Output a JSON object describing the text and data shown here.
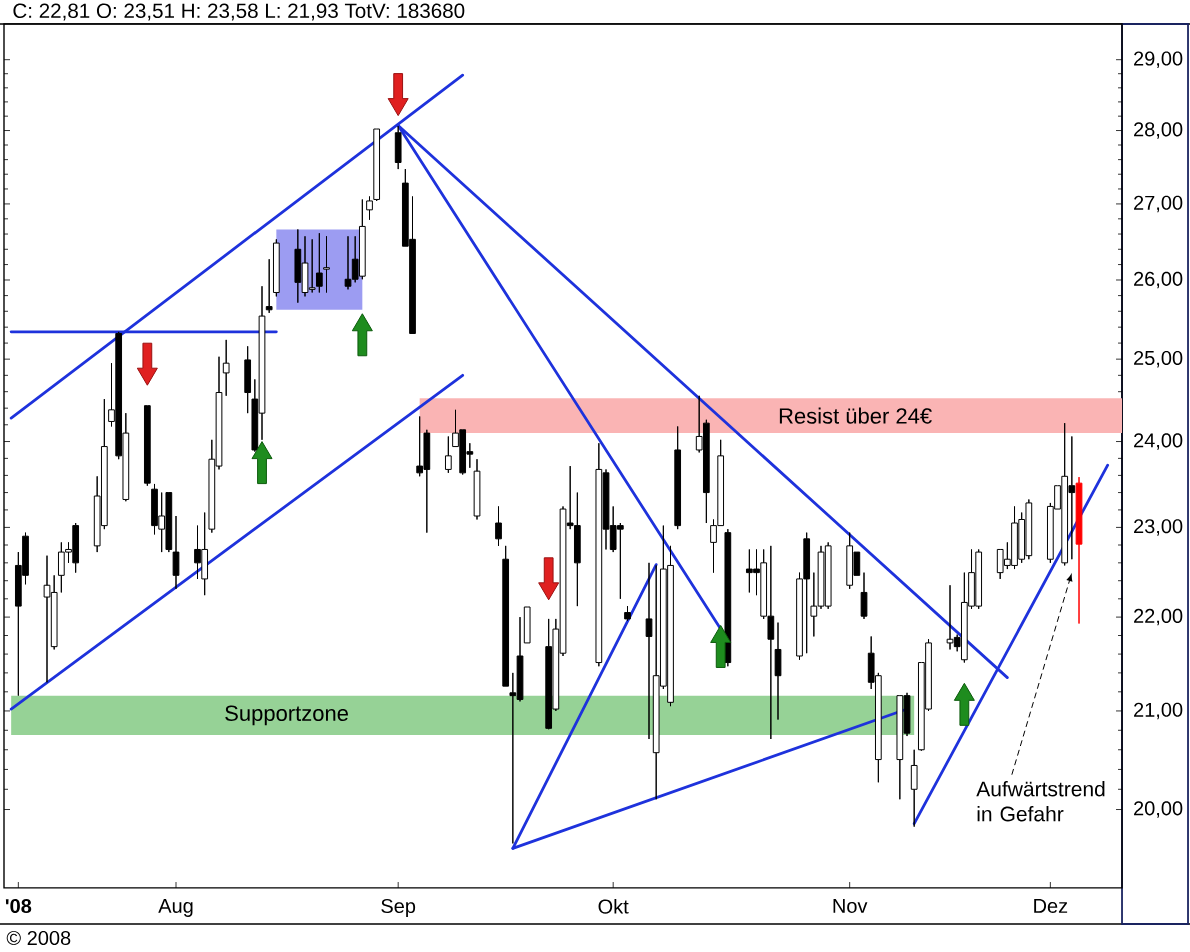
{
  "chart_data": {
    "type": "candlestick",
    "title": "C: 22,81 O: 23,51 H: 23,58 L: 21,93 TotV: 183680",
    "log": true,
    "xlim": [
      "2008-07-08",
      "2008-12-11"
    ],
    "xticks": [
      {
        "value": "2008-07-10",
        "label": "'08"
      },
      {
        "value": "2008-08-01",
        "label": "Aug"
      },
      {
        "value": "2008-09-01",
        "label": "Sep"
      },
      {
        "value": "2008-10-01",
        "label": "Okt"
      },
      {
        "value": "2008-11-03",
        "label": "Nov"
      },
      {
        "value": "2008-12-01",
        "label": "Dez"
      }
    ],
    "ylim": [
      19.24,
      29.52
    ],
    "yticks": [
      {
        "value": 20,
        "label": "20,00"
      },
      {
        "value": 21,
        "label": "21,00"
      },
      {
        "value": 22,
        "label": "22,00"
      },
      {
        "value": 23,
        "label": "23,00"
      },
      {
        "value": 24,
        "label": "24,00"
      },
      {
        "value": 25,
        "label": "25,00"
      },
      {
        "value": 26,
        "label": "26,00"
      },
      {
        "value": 27,
        "label": "27,00"
      },
      {
        "value": 28,
        "label": "28,00"
      },
      {
        "value": 29,
        "label": "29,00"
      }
    ],
    "series": [
      {
        "type": "area",
        "color": "#96d296",
        "x": [
          "2008-07-09",
          "2008-11-12"
        ],
        "values": [
          null,
          null
        ],
        "lower": [
          20.75,
          20.75
        ],
        "upper": [
          21.16,
          21.16
        ]
      },
      {
        "type": "area",
        "color": "#fab4b4",
        "x": [
          "2008-09-04",
          "2008-12-11"
        ],
        "values": [
          null,
          null
        ],
        "lower": [
          24.1,
          24.1
        ],
        "upper": [
          24.52,
          24.52
        ]
      },
      {
        "type": "area",
        "color": "#9c9cf2",
        "x": [
          "2008-08-15",
          "2008-08-27"
        ],
        "values": [
          null,
          null
        ],
        "lower": [
          25.62,
          25.62
        ],
        "upper": [
          26.66,
          26.66
        ]
      },
      {
        "type": "line",
        "color": "#1e32dc",
        "x": [
          "2008-07-09",
          "2008-09-10"
        ],
        "values": [
          24.28,
          28.78
        ]
      },
      {
        "type": "line",
        "color": "#1e32dc",
        "x": [
          "2008-07-09",
          "2008-09-10"
        ],
        "values": [
          21.02,
          24.8
        ]
      },
      {
        "type": "line",
        "color": "#1e32dc",
        "x": [
          "2008-07-09",
          "2008-08-15"
        ],
        "values": [
          25.34,
          25.34
        ]
      },
      {
        "type": "line",
        "color": "#1e32dc",
        "x": [
          "2008-09-01",
          "2008-11-25"
        ],
        "values": [
          28.07,
          21.35
        ]
      },
      {
        "type": "line",
        "color": "#1e32dc",
        "x": [
          "2008-09-01",
          "2008-10-16"
        ],
        "values": [
          28.07,
          21.87
        ]
      },
      {
        "type": "line",
        "color": "#1e32dc",
        "x": [
          "2008-09-17",
          "2008-10-07"
        ],
        "values": [
          19.62,
          22.58
        ]
      },
      {
        "type": "line",
        "color": "#1e32dc",
        "x": [
          "2008-09-17",
          "2008-11-11"
        ],
        "values": [
          19.62,
          21.02
        ]
      },
      {
        "type": "line",
        "color": "#1e32dc",
        "x": [
          "2008-11-12",
          "2008-12-09"
        ],
        "values": [
          19.86,
          23.72
        ]
      },
      {
        "color": "#000000",
        "x": [
          "2008-07-10",
          "2008-07-11",
          "2008-07-14",
          "2008-07-15",
          "2008-07-16",
          "2008-07-17",
          "2008-07-18",
          "2008-07-21",
          "2008-07-22",
          "2008-07-23",
          "2008-07-24",
          "2008-07-25",
          "2008-07-28",
          "2008-07-29",
          "2008-07-30",
          "2008-07-31",
          "2008-08-01",
          "2008-08-04",
          "2008-08-05",
          "2008-08-06",
          "2008-08-07",
          "2008-08-08",
          "2008-08-11",
          "2008-08-12",
          "2008-08-13",
          "2008-08-14",
          "2008-08-15",
          "2008-08-18",
          "2008-08-19",
          "2008-08-20",
          "2008-08-21",
          "2008-08-22",
          "2008-08-25",
          "2008-08-26",
          "2008-08-27",
          "2008-08-28",
          "2008-08-29",
          "2008-09-01",
          "2008-09-02",
          "2008-09-03",
          "2008-09-04",
          "2008-09-05",
          "2008-09-08",
          "2008-09-09",
          "2008-09-10",
          "2008-09-11",
          "2008-09-12",
          "2008-09-15",
          "2008-09-16",
          "2008-09-17",
          "2008-09-18",
          "2008-09-19",
          "2008-09-22",
          "2008-09-23",
          "2008-09-24",
          "2008-09-25",
          "2008-09-26",
          "2008-09-29",
          "2008-09-30",
          "2008-10-01",
          "2008-10-02",
          "2008-10-03",
          "2008-10-06",
          "2008-10-07",
          "2008-10-08",
          "2008-10-09",
          "2008-10-10",
          "2008-10-13",
          "2008-10-14",
          "2008-10-15",
          "2008-10-16",
          "2008-10-17",
          "2008-10-20",
          "2008-10-21",
          "2008-10-22",
          "2008-10-23",
          "2008-10-24",
          "2008-10-27",
          "2008-10-28",
          "2008-10-29",
          "2008-10-30",
          "2008-10-31",
          "2008-11-03",
          "2008-11-04",
          "2008-11-05",
          "2008-11-06",
          "2008-11-07",
          "2008-11-10",
          "2008-11-11",
          "2008-11-12",
          "2008-11-13",
          "2008-11-14",
          "2008-11-17",
          "2008-11-18",
          "2008-11-19",
          "2008-11-20",
          "2008-11-21",
          "2008-11-24",
          "2008-11-25",
          "2008-11-26",
          "2008-11-27",
          "2008-11-28",
          "2008-12-01",
          "2008-12-02",
          "2008-12-03",
          "2008-12-04"
        ],
        "ohlc": [
          [
            22.57,
            22.72,
            21.16,
            22.12
          ],
          [
            22.9,
            22.94,
            22.36,
            22.46
          ],
          [
            22.22,
            22.68,
            21.3,
            22.35
          ],
          [
            21.68,
            22.46,
            21.65,
            22.27
          ],
          [
            22.46,
            22.83,
            22.27,
            22.72
          ],
          [
            22.72,
            22.83,
            22.6,
            22.75
          ],
          [
            23.02,
            23.05,
            22.49,
            22.6
          ],
          [
            22.79,
            23.59,
            22.72,
            23.36
          ],
          [
            23.02,
            24.51,
            22.98,
            23.94
          ],
          [
            24.24,
            24.95,
            24.18,
            24.38
          ],
          [
            25.32,
            25.34,
            23.79,
            23.83
          ],
          [
            23.32,
            24.34,
            23.3,
            24.1
          ],
          [
            24.43,
            24.43,
            23.48,
            23.51
          ],
          [
            23.44,
            23.5,
            22.92,
            23.02
          ],
          [
            22.98,
            23.4,
            22.72,
            23.13
          ],
          [
            23.4,
            23.4,
            22.72,
            22.75
          ],
          [
            22.72,
            23.13,
            22.31,
            22.46
          ],
          [
            22.75,
            23.02,
            22.42,
            22.6
          ],
          [
            22.42,
            23.17,
            22.24,
            22.75
          ],
          [
            22.98,
            24.02,
            22.94,
            23.79
          ],
          [
            23.71,
            25.03,
            23.67,
            24.59
          ],
          [
            24.83,
            25.24,
            24.55,
            24.95
          ],
          [
            24.99,
            25.16,
            24.34,
            24.59
          ],
          [
            24.51,
            24.75,
            23.88,
            23.9
          ],
          [
            24.34,
            25.92,
            24.02,
            25.54
          ],
          [
            25.66,
            26.27,
            25.58,
            25.62
          ],
          [
            25.84,
            26.53,
            25.79,
            26.48
          ],
          [
            26.4,
            26.66,
            25.71,
            25.97
          ],
          [
            25.84,
            26.57,
            25.79,
            26.22
          ],
          [
            25.88,
            26.53,
            25.84,
            25.9
          ],
          [
            26.09,
            26.61,
            25.84,
            25.92
          ],
          [
            26.14,
            26.57,
            25.84,
            26.16
          ],
          [
            26.01,
            26.57,
            25.88,
            25.92
          ],
          [
            26.27,
            26.57,
            25.97,
            26.01
          ],
          [
            26.05,
            27.06,
            26.01,
            26.7
          ],
          [
            26.92,
            27.1,
            26.79,
            27.04
          ],
          [
            27.06,
            28.02,
            27.04,
            28.02
          ],
          [
            27.97,
            28.06,
            27.47,
            27.56
          ],
          [
            27.28,
            27.47,
            26.44,
            26.44
          ],
          [
            26.53,
            27.1,
            25.32,
            25.32
          ],
          [
            23.71,
            24.3,
            23.59,
            23.63
          ],
          [
            24.1,
            24.14,
            22.94,
            23.67
          ],
          [
            23.67,
            24.06,
            23.63,
            23.83
          ],
          [
            23.94,
            24.38,
            23.94,
            24.1
          ],
          [
            24.14,
            24.14,
            23.61,
            23.63
          ],
          [
            23.88,
            23.98,
            23.69,
            23.85
          ],
          [
            23.13,
            23.79,
            23.09,
            23.65
          ],
          [
            23.05,
            23.24,
            22.79,
            22.87
          ],
          [
            22.64,
            22.79,
            21.26,
            21.26
          ],
          [
            21.19,
            21.4,
            19.67,
            21.16
          ],
          [
            21.58,
            22.0,
            21.1,
            21.12
          ],
          [
            21.72,
            22.11,
            21.72,
            22.11
          ],
          [
            21.68,
            21.98,
            20.81,
            20.82
          ],
          [
            21.02,
            21.98,
            21.0,
            21.87
          ],
          [
            21.61,
            23.24,
            21.58,
            23.21
          ],
          [
            23.05,
            23.71,
            22.98,
            23.02
          ],
          [
            23.02,
            23.4,
            22.12,
            22.6
          ],
          [
            21.51,
            23.98,
            21.47,
            23.67
          ],
          [
            23.63,
            23.67,
            22.75,
            22.98
          ],
          [
            23.02,
            23.24,
            22.72,
            22.75
          ],
          [
            23.02,
            23.05,
            22.2,
            22.98
          ],
          [
            22.05,
            22.12,
            21.96,
            21.98
          ],
          [
            21.98,
            22.6,
            20.71,
            21.79
          ],
          [
            20.57,
            22.57,
            20.1,
            21.37
          ],
          [
            21.26,
            23.02,
            21.23,
            22.53
          ],
          [
            21.09,
            22.79,
            21.05,
            22.57
          ],
          [
            23.9,
            24.18,
            22.98,
            23.02
          ],
          [
            23.9,
            24.55,
            23.87,
            24.06
          ],
          [
            24.22,
            24.26,
            23.05,
            23.4
          ],
          [
            22.83,
            23.09,
            22.49,
            23.02
          ],
          [
            23.02,
            24.02,
            23.02,
            23.83
          ],
          [
            22.94,
            22.98,
            21.47,
            21.51
          ],
          [
            22.53,
            22.75,
            22.27,
            22.49
          ],
          [
            22.53,
            22.75,
            22.24,
            22.49
          ],
          [
            22.01,
            22.75,
            21.98,
            22.6
          ],
          [
            22.01,
            22.79,
            20.71,
            21.76
          ],
          [
            21.65,
            21.94,
            20.91,
            21.37
          ],
          [
            21.58,
            22.49,
            21.54,
            22.42
          ],
          [
            22.87,
            22.94,
            21.61,
            22.42
          ],
          [
            22.01,
            22.49,
            21.79,
            22.12
          ],
          [
            22.12,
            22.79,
            22.09,
            22.72
          ],
          [
            22.12,
            22.83,
            22.09,
            22.79
          ],
          [
            22.35,
            22.94,
            22.31,
            22.79
          ],
          [
            22.72,
            22.72,
            22.46,
            22.46
          ],
          [
            22.27,
            22.49,
            21.98,
            22.01
          ],
          [
            21.61,
            21.79,
            21.23,
            21.3
          ],
          [
            20.5,
            21.4,
            20.27,
            21.37
          ],
          [
            20.5,
            21.16,
            20.1,
            21.16
          ],
          [
            21.16,
            21.19,
            20.74,
            20.77
          ],
          [
            20.2,
            20.6,
            19.83,
            20.44
          ],
          [
            20.6,
            21.51,
            20.59,
            21.51
          ],
          [
            21.02,
            21.76,
            21.0,
            21.72
          ],
          [
            21.72,
            22.35,
            21.65,
            21.76
          ],
          [
            21.78,
            21.81,
            21.63,
            21.68
          ],
          [
            21.54,
            22.49,
            21.51,
            22.16
          ],
          [
            22.12,
            22.75,
            22.09,
            22.49
          ],
          [
            22.12,
            22.75,
            22.09,
            22.72
          ],
          [
            22.49,
            22.75,
            22.42,
            22.75
          ],
          [
            22.57,
            22.83,
            22.53,
            22.64
          ],
          [
            22.57,
            23.24,
            22.53,
            23.05
          ],
          [
            22.64,
            23.17,
            22.6,
            23.09
          ],
          [
            22.68,
            23.32,
            22.64,
            23.28
          ],
          [
            22.64,
            23.28,
            22.6,
            23.24
          ],
          [
            23.21,
            23.48,
            23.21,
            23.48
          ],
          [
            22.6,
            24.22,
            22.57,
            23.59
          ],
          [
            23.48,
            24.06,
            22.64,
            23.4
          ]
        ]
      },
      {
        "color": "#ff0000",
        "x": [
          "2008-12-05"
        ],
        "ohlc": [
          [
            23.51,
            23.58,
            21.93,
            22.81
          ]
        ]
      }
    ],
    "annotations": [
      "© 2008",
      "Supportzone",
      "Resist über 24€",
      {
        "text": "Aufwärtstrend in Gefahr",
        "x": "2008-12-04",
        "y": 22.49
      }
    ]
  }
}
